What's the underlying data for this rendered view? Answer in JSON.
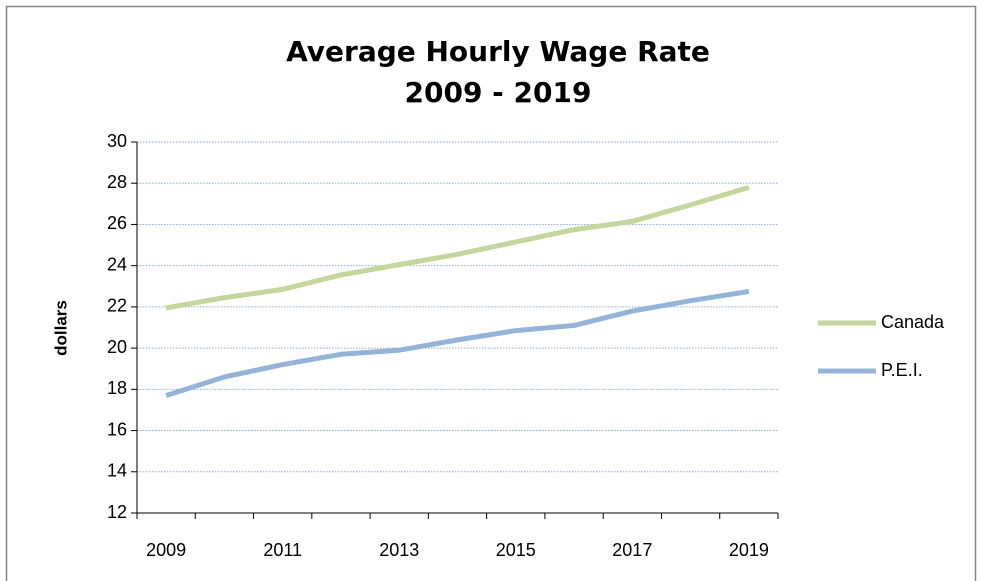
{
  "chart_data": {
    "type": "line",
    "title": [
      "Average Hourly Wage Rate",
      "2009 - 2019"
    ],
    "y_label": "dollars",
    "categories": [
      "2009",
      null,
      "2011",
      null,
      "2013",
      null,
      "2015",
      null,
      "2017",
      null,
      "2019"
    ],
    "series": [
      {
        "name": "Canada",
        "color": "#c3d69b",
        "values": [
          21.95,
          22.45,
          22.85,
          23.55,
          24.05,
          24.55,
          25.15,
          25.75,
          26.15,
          26.95,
          27.8
        ]
      },
      {
        "name": "P.E.I.",
        "color": "#95b3d7",
        "values": [
          17.7,
          18.6,
          19.2,
          19.7,
          19.9,
          20.4,
          20.85,
          21.1,
          21.8,
          22.3,
          22.75
        ]
      }
    ],
    "ylim": [
      12,
      30
    ],
    "yticks": [
      12,
      14,
      16,
      18,
      20,
      22,
      24,
      26,
      28,
      30
    ],
    "grid": true,
    "legend": "right"
  }
}
